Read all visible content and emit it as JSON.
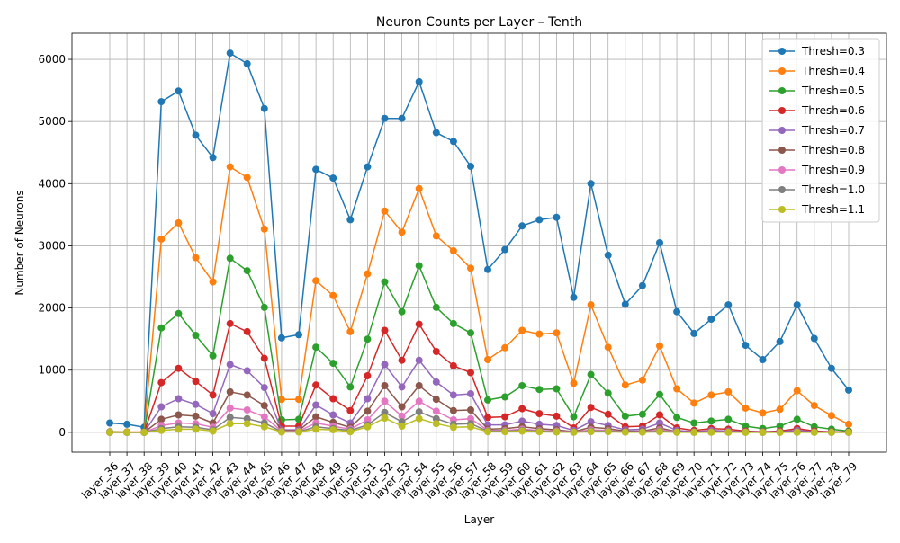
{
  "chart_data": {
    "type": "line",
    "title": "Neuron Counts per Layer – Tenth",
    "xlabel": "Layer",
    "ylabel": "Number of Neurons",
    "ylim": [
      -320,
      6420
    ],
    "yticks": [
      0,
      1000,
      2000,
      3000,
      4000,
      5000,
      6000
    ],
    "grid": true,
    "legend_position": "top-right",
    "categories": [
      "layer_36",
      "layer_37",
      "layer_38",
      "layer_39",
      "layer_40",
      "layer_41",
      "layer_42",
      "layer_43",
      "layer_44",
      "layer_45",
      "layer_46",
      "layer_47",
      "layer_48",
      "layer_49",
      "layer_50",
      "layer_51",
      "layer_52",
      "layer_53",
      "layer_54",
      "layer_55",
      "layer_56",
      "layer_57",
      "layer_58",
      "layer_59",
      "layer_60",
      "layer_61",
      "layer_62",
      "layer_63",
      "layer_64",
      "layer_65",
      "layer_66",
      "layer_67",
      "layer_68",
      "layer_69",
      "layer_70",
      "layer_71",
      "layer_72",
      "layer_73",
      "layer_74",
      "layer_75",
      "layer_76",
      "layer_77",
      "layer_78",
      "layer_79"
    ],
    "series": [
      {
        "name": "Thresh=0.3",
        "color": "#1f77b4",
        "values": [
          150,
          130,
          80,
          5320,
          5490,
          4780,
          4420,
          6100,
          5930,
          5210,
          1520,
          1570,
          4230,
          4090,
          3420,
          4270,
          5050,
          5050,
          5640,
          4820,
          4680,
          4280,
          2620,
          2940,
          3320,
          3420,
          3460,
          2170,
          4000,
          2850,
          2060,
          2360,
          3050,
          1940,
          1590,
          1820,
          2050,
          1400,
          1170,
          1460,
          2050,
          1510,
          1030,
          680
        ]
      },
      {
        "name": "Thresh=0.4",
        "color": "#ff7f0e",
        "values": [
          10,
          5,
          5,
          3110,
          3370,
          2810,
          2420,
          4270,
          4100,
          3270,
          530,
          530,
          2440,
          2200,
          1620,
          2550,
          3560,
          3220,
          3920,
          3160,
          2920,
          2640,
          1170,
          1360,
          1640,
          1580,
          1600,
          790,
          2050,
          1370,
          760,
          840,
          1390,
          700,
          470,
          600,
          650,
          390,
          310,
          370,
          670,
          430,
          270,
          130
        ]
      },
      {
        "name": "Thresh=0.5",
        "color": "#2ca02c",
        "values": [
          5,
          2,
          2,
          1680,
          1910,
          1560,
          1230,
          2800,
          2600,
          2010,
          200,
          210,
          1370,
          1110,
          730,
          1500,
          2420,
          1940,
          2680,
          2010,
          1750,
          1600,
          520,
          570,
          750,
          690,
          700,
          250,
          930,
          630,
          260,
          290,
          610,
          240,
          150,
          180,
          210,
          100,
          60,
          100,
          210,
          90,
          50,
          20
        ]
      },
      {
        "name": "Thresh=0.6",
        "color": "#d62728",
        "values": [
          3,
          1,
          1,
          800,
          1030,
          820,
          600,
          1750,
          1620,
          1190,
          100,
          100,
          760,
          540,
          350,
          910,
          1640,
          1160,
          1740,
          1300,
          1070,
          960,
          240,
          250,
          380,
          300,
          260,
          70,
          400,
          290,
          90,
          100,
          280,
          70,
          30,
          60,
          50,
          20,
          10,
          20,
          60,
          20,
          10,
          5
        ]
      },
      {
        "name": "Thresh=0.7",
        "color": "#9467bd",
        "values": [
          2,
          0,
          0,
          410,
          540,
          450,
          300,
          1090,
          990,
          720,
          40,
          40,
          440,
          280,
          150,
          540,
          1090,
          730,
          1160,
          810,
          600,
          620,
          120,
          120,
          180,
          130,
          110,
          30,
          170,
          110,
          40,
          50,
          150,
          30,
          10,
          30,
          20,
          10,
          5,
          10,
          30,
          10,
          5,
          2
        ]
      },
      {
        "name": "Thresh=0.8",
        "color": "#8c564b",
        "values": [
          1,
          0,
          0,
          210,
          280,
          260,
          150,
          650,
          600,
          430,
          30,
          30,
          250,
          160,
          80,
          340,
          750,
          410,
          750,
          530,
          350,
          360,
          50,
          60,
          90,
          60,
          40,
          10,
          80,
          60,
          20,
          20,
          70,
          10,
          5,
          10,
          10,
          5,
          2,
          5,
          10,
          5,
          2,
          1
        ]
      },
      {
        "name": "Thresh=0.9",
        "color": "#e377c2",
        "values": [
          0,
          0,
          0,
          110,
          150,
          140,
          80,
          390,
          360,
          250,
          20,
          20,
          150,
          100,
          50,
          200,
          500,
          260,
          500,
          340,
          200,
          220,
          30,
          30,
          50,
          30,
          20,
          5,
          40,
          30,
          10,
          10,
          40,
          5,
          2,
          5,
          5,
          2,
          1,
          2,
          5,
          2,
          1,
          0
        ]
      },
      {
        "name": "Thresh=1.0",
        "color": "#7f7f7f",
        "values": [
          0,
          0,
          0,
          60,
          90,
          80,
          40,
          240,
          220,
          150,
          10,
          10,
          90,
          60,
          30,
          120,
          320,
          170,
          330,
          220,
          130,
          140,
          20,
          20,
          30,
          20,
          10,
          2,
          20,
          20,
          5,
          5,
          20,
          2,
          1,
          2,
          2,
          1,
          0,
          1,
          2,
          1,
          0,
          0
        ]
      },
      {
        "name": "Thresh=1.1",
        "color": "#bcbd22",
        "values": [
          0,
          0,
          0,
          30,
          50,
          50,
          20,
          140,
          140,
          90,
          5,
          5,
          50,
          40,
          10,
          90,
          230,
          100,
          220,
          140,
          80,
          90,
          10,
          10,
          20,
          10,
          5,
          1,
          10,
          10,
          2,
          2,
          10,
          1,
          0,
          1,
          1,
          0,
          0,
          0,
          1,
          0,
          0,
          0
        ]
      }
    ]
  }
}
